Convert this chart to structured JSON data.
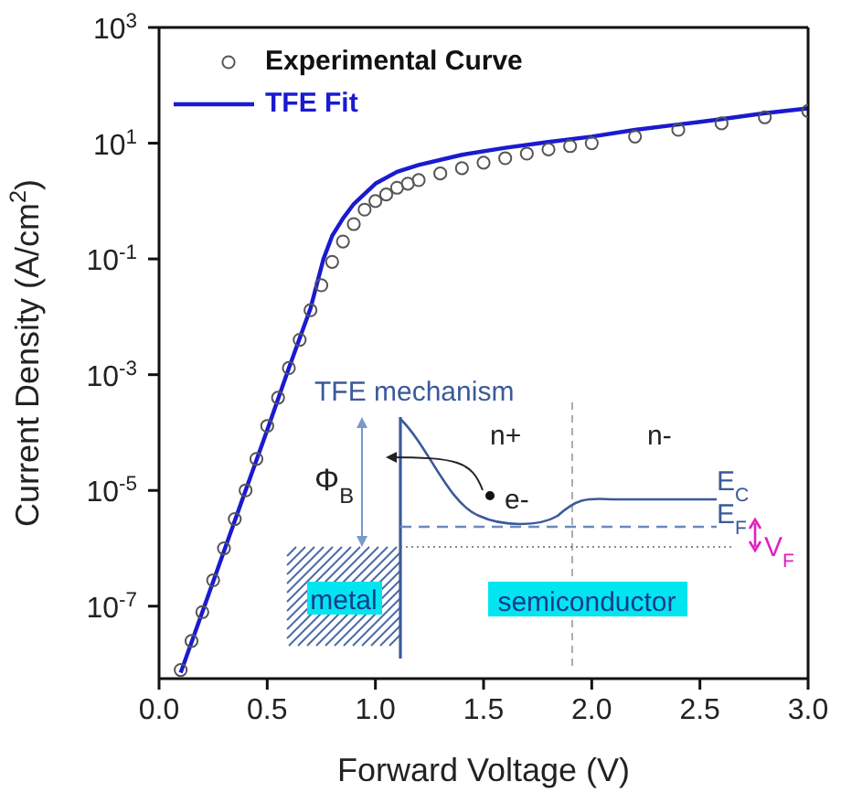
{
  "chart_data": {
    "type": "line",
    "xlabel": "Forward Voltage (V)",
    "ylabel": "Current Density (A/cm$^{2}$)",
    "log": "y",
    "xlim": [
      0,
      3
    ],
    "ylim": [
      5.6e-09,
      1000
    ],
    "xticks": [
      {
        "value": 0,
        "label": "0.0"
      },
      {
        "value": 0.5,
        "label": "0.5"
      },
      {
        "value": 1,
        "label": "1.0"
      },
      {
        "value": 1.5,
        "label": "1.5"
      },
      {
        "value": 2,
        "label": "2.0"
      },
      {
        "value": 2.5,
        "label": "2.5"
      },
      {
        "value": 3,
        "label": "3.0"
      }
    ],
    "yticks": [
      {
        "value": 1e-07,
        "label": "10$^{-7}$"
      },
      {
        "value": 1e-05,
        "label": "10$^{-5}$"
      },
      {
        "value": 0.001,
        "label": "10$^{-3}$"
      },
      {
        "value": 0.1,
        "label": "10$^{-1}$"
      },
      {
        "value": 10,
        "label": "10$^{1}$"
      },
      {
        "value": 1000,
        "label": "10$^{3}$"
      }
    ],
    "legend": "top left",
    "series": [
      {
        "name": "Experimental Curve",
        "type": "scatter",
        "marker": "circle",
        "color": "#555555",
        "x": [
          0.1,
          0.15,
          0.2,
          0.25,
          0.3,
          0.35,
          0.4,
          0.45,
          0.5,
          0.55,
          0.6,
          0.65,
          0.7,
          0.75,
          0.8,
          0.85,
          0.9,
          0.95,
          1.0,
          1.05,
          1.1,
          1.15,
          1.2,
          1.3,
          1.4,
          1.5,
          1.6,
          1.7,
          1.8,
          1.9,
          2.0,
          2.2,
          2.4,
          2.6,
          2.8,
          3.0
        ],
        "values": [
          7.9e-09,
          2.5e-08,
          7.9e-08,
          2.8e-07,
          1e-06,
          3.2e-06,
          1e-05,
          3.5e-05,
          0.00013,
          0.0004,
          0.0013,
          0.004,
          0.013,
          0.035,
          0.089,
          0.2,
          0.4,
          0.71,
          1,
          1.3,
          1.7,
          2,
          2.3,
          3,
          3.7,
          4.6,
          5.5,
          6.6,
          7.8,
          8.9,
          10,
          13,
          17,
          22,
          28,
          36
        ]
      },
      {
        "name": "TFE Fit",
        "line_style": "solid",
        "marker": "none",
        "color": "#1a1ad0",
        "x": [
          0.1,
          0.2,
          0.3,
          0.4,
          0.5,
          0.6,
          0.7,
          0.76,
          0.8,
          0.85,
          0.9,
          1.0,
          1.1,
          1.2,
          1.4,
          1.6,
          1.8,
          2.0,
          2.2,
          2.4,
          2.6,
          2.8,
          3.0
        ],
        "values": [
          7.1e-09,
          7.9e-08,
          8.9e-07,
          1e-05,
          0.00011,
          0.0013,
          0.014,
          0.1,
          0.25,
          0.5,
          0.89,
          2,
          3.2,
          4.2,
          6.3,
          8.3,
          10.5,
          13,
          17,
          21,
          26,
          33,
          40
        ]
      }
    ],
    "annotations": [
      "TFE mechanism",
      "Φ$_{B}$",
      "n+",
      "n-",
      "e-",
      "E$_{C}$",
      "E$_{F}$",
      "V$_{F}$",
      "metal",
      "semiconductor"
    ]
  }
}
